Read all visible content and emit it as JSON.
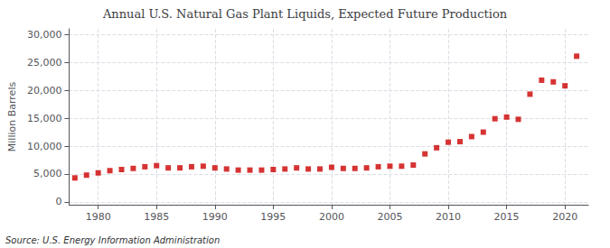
{
  "chart_data": {
    "type": "scatter",
    "title": "Annual U.S. Natural Gas Plant Liquids, Expected Future Production",
    "ylabel": "Million Barrels",
    "annotations": [
      "Source: U.S. Energy Information Administration"
    ],
    "x": [
      1978,
      1979,
      1980,
      1981,
      1982,
      1983,
      1984,
      1985,
      1986,
      1987,
      1988,
      1989,
      1990,
      1991,
      1992,
      1993,
      1994,
      1995,
      1996,
      1997,
      1998,
      1999,
      2000,
      2001,
      2002,
      2003,
      2004,
      2005,
      2006,
      2007,
      2008,
      2009,
      2010,
      2011,
      2012,
      2013,
      2014,
      2015,
      2016,
      2017,
      2018,
      2019,
      2020,
      2021
    ],
    "values": [
      4300,
      4800,
      5200,
      5600,
      5800,
      6000,
      6300,
      6500,
      6100,
      6100,
      6300,
      6400,
      6100,
      5900,
      5700,
      5700,
      5700,
      5800,
      5900,
      6100,
      5900,
      5900,
      6200,
      6000,
      6000,
      6100,
      6300,
      6400,
      6400,
      6600,
      8600,
      9700,
      10700,
      10800,
      11700,
      12500,
      14900,
      15200,
      14800,
      19300,
      21800,
      21500,
      20800,
      26100
    ],
    "color": "#cc0000",
    "marker": "square",
    "xlim": [
      1977.5,
      2022
    ],
    "xticks": [
      1980,
      1985,
      1990,
      1995,
      2000,
      2005,
      2010,
      2015,
      2020
    ],
    "ylim": [
      -500,
      31000
    ],
    "yticks": [
      0,
      {
        "value": 5000,
        "label": "5,000"
      },
      {
        "value": 10000,
        "label": "10,000"
      },
      {
        "value": 15000,
        "label": "15,000"
      },
      {
        "value": 20000,
        "label": "20,000"
      },
      {
        "value": 25000,
        "label": "25,000"
      },
      {
        "value": 30000,
        "label": "30,000"
      }
    ],
    "grid": true
  }
}
